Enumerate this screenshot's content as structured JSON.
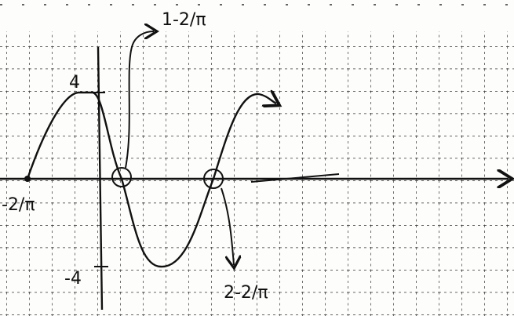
{
  "labels": {
    "root_1": "1-2/π",
    "root_2": "2-2/π",
    "left_root": "-2/π",
    "max": "4",
    "min": "-4"
  }
}
